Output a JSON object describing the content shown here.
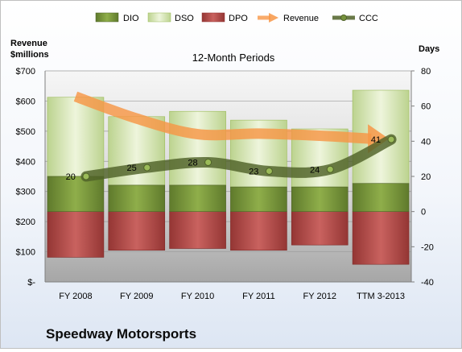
{
  "company": "Speedway Motorsports",
  "chart_data": {
    "type": "bar",
    "title": "12-Month Periods",
    "ylabel_left": [
      "Revenue",
      "$millions"
    ],
    "ylabel_right": "Days",
    "categories": [
      "FY 2008",
      "FY 2009",
      "FY 2010",
      "FY 2011",
      "FY 2012",
      "TTM 3-2013"
    ],
    "left_axis": {
      "ylim": [
        0,
        700
      ],
      "ticks": [
        "$-",
        "$100",
        "$200",
        "$300",
        "$400",
        "$500",
        "$600",
        "$700"
      ]
    },
    "right_axis": {
      "ylim": [
        -40,
        80
      ],
      "ticks": [
        "-40",
        "-20",
        "0",
        "20",
        "40",
        "60",
        "80"
      ]
    },
    "legend": {
      "placement": "top",
      "items": [
        "DIO",
        "DSO",
        "DPO",
        "Revenue",
        "CCC"
      ]
    },
    "grid": true,
    "series": [
      {
        "name": "DIO",
        "type": "stacked-bar",
        "axis": "right",
        "values": [
          20,
          15,
          15,
          14,
          14,
          16
        ],
        "color": "#76923c"
      },
      {
        "name": "DSO",
        "type": "stacked-bar",
        "axis": "right",
        "values": [
          45,
          39,
          42,
          38,
          33,
          53
        ],
        "color": "#d7e4bd"
      },
      {
        "name": "DPO",
        "type": "bar-below-zero",
        "axis": "right",
        "values": [
          -26,
          -22,
          -21,
          -22,
          -19,
          -30
        ],
        "color": "#c0504d"
      },
      {
        "name": "Revenue",
        "type": "line",
        "axis": "left",
        "values": [
          615,
          542,
          490,
          492,
          485,
          475
        ],
        "color": "#f79646"
      },
      {
        "name": "CCC",
        "type": "line",
        "axis": "right",
        "values": [
          20,
          25,
          28,
          23,
          24,
          41
        ],
        "labels": [
          "20",
          "25",
          "28",
          "23",
          "24",
          "41"
        ],
        "color": "#4f6228"
      }
    ]
  }
}
